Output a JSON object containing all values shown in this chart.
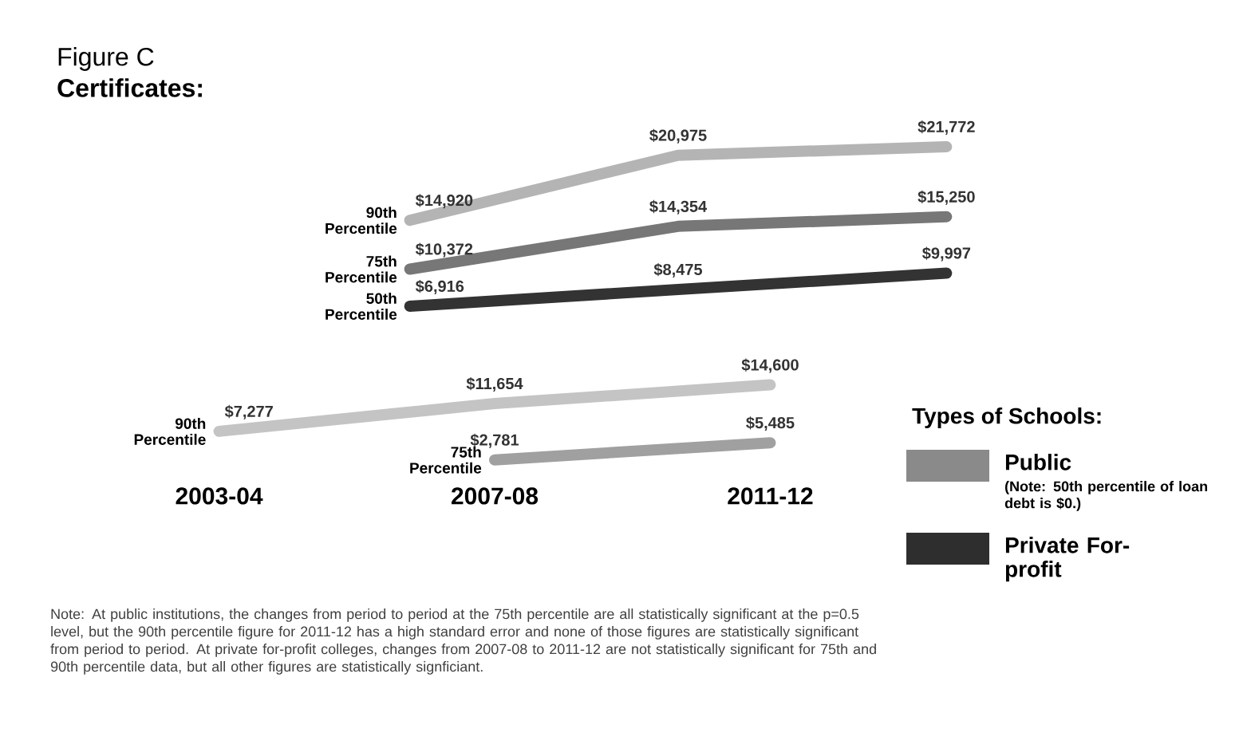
{
  "chart_data": [
    {
      "type": "line",
      "title": "Figure C",
      "subtitle": "Certificates:",
      "categories": [
        null,
        null,
        null
      ],
      "tick_labels": false,
      "marker": "none",
      "series": [
        {
          "name": "90th Percentile",
          "color": "#b4b4b4",
          "values": [
            14920,
            20975,
            21772
          ],
          "value_labels": [
            "$14,920",
            "$20,975",
            "$21,772"
          ]
        },
        {
          "name": "75th Percentile",
          "color": "#777777",
          "values": [
            10372,
            14354,
            15250
          ],
          "value_labels": [
            "$10,372",
            "$14,354",
            "$15,250"
          ]
        },
        {
          "name": "50th Percentile",
          "color": "#333333",
          "values": [
            6916,
            8475,
            9997
          ],
          "value_labels": [
            "$6,916",
            "$8,475",
            "$9,997"
          ]
        }
      ]
    },
    {
      "type": "line",
      "categories": [
        "2003-04",
        "2007-08",
        "2011-12"
      ],
      "marker": "none",
      "series": [
        {
          "name": "90th Percentile",
          "color": "#c4c4c4",
          "values": [
            7277,
            11654,
            14600
          ],
          "value_labels": [
            "$7,277",
            "$11,654",
            "$14,600"
          ]
        },
        {
          "name": "75th Percentile",
          "color": "#a0a0a0",
          "values": [
            null,
            2781,
            5485
          ],
          "value_labels": [
            null,
            "$2,781",
            "$5,485"
          ]
        }
      ],
      "annotations": [
        "Note: At public institutions, the changes from period to period at the 75th percentile are all statistically significant at the p=0.5 level, but the 90th percentile figure for 2011-12 has a high standard error and none of those figures are statistically significant from period to period. At private for-profit colleges, changes from 2007-08 to 2011-12 are not statistically significant for 75th and 90th percentile data, but all other figures are statistically signficiant."
      ]
    },
    {
      "type": "other",
      "title": "Types of Schools:",
      "categories": [
        "Public",
        "Private For-profit"
      ],
      "colors": [
        "#8a8a8a",
        "#2e2e2e"
      ],
      "annotations": [
        "(Note: 50th percentile of loan debt is $0.)"
      ]
    }
  ]
}
